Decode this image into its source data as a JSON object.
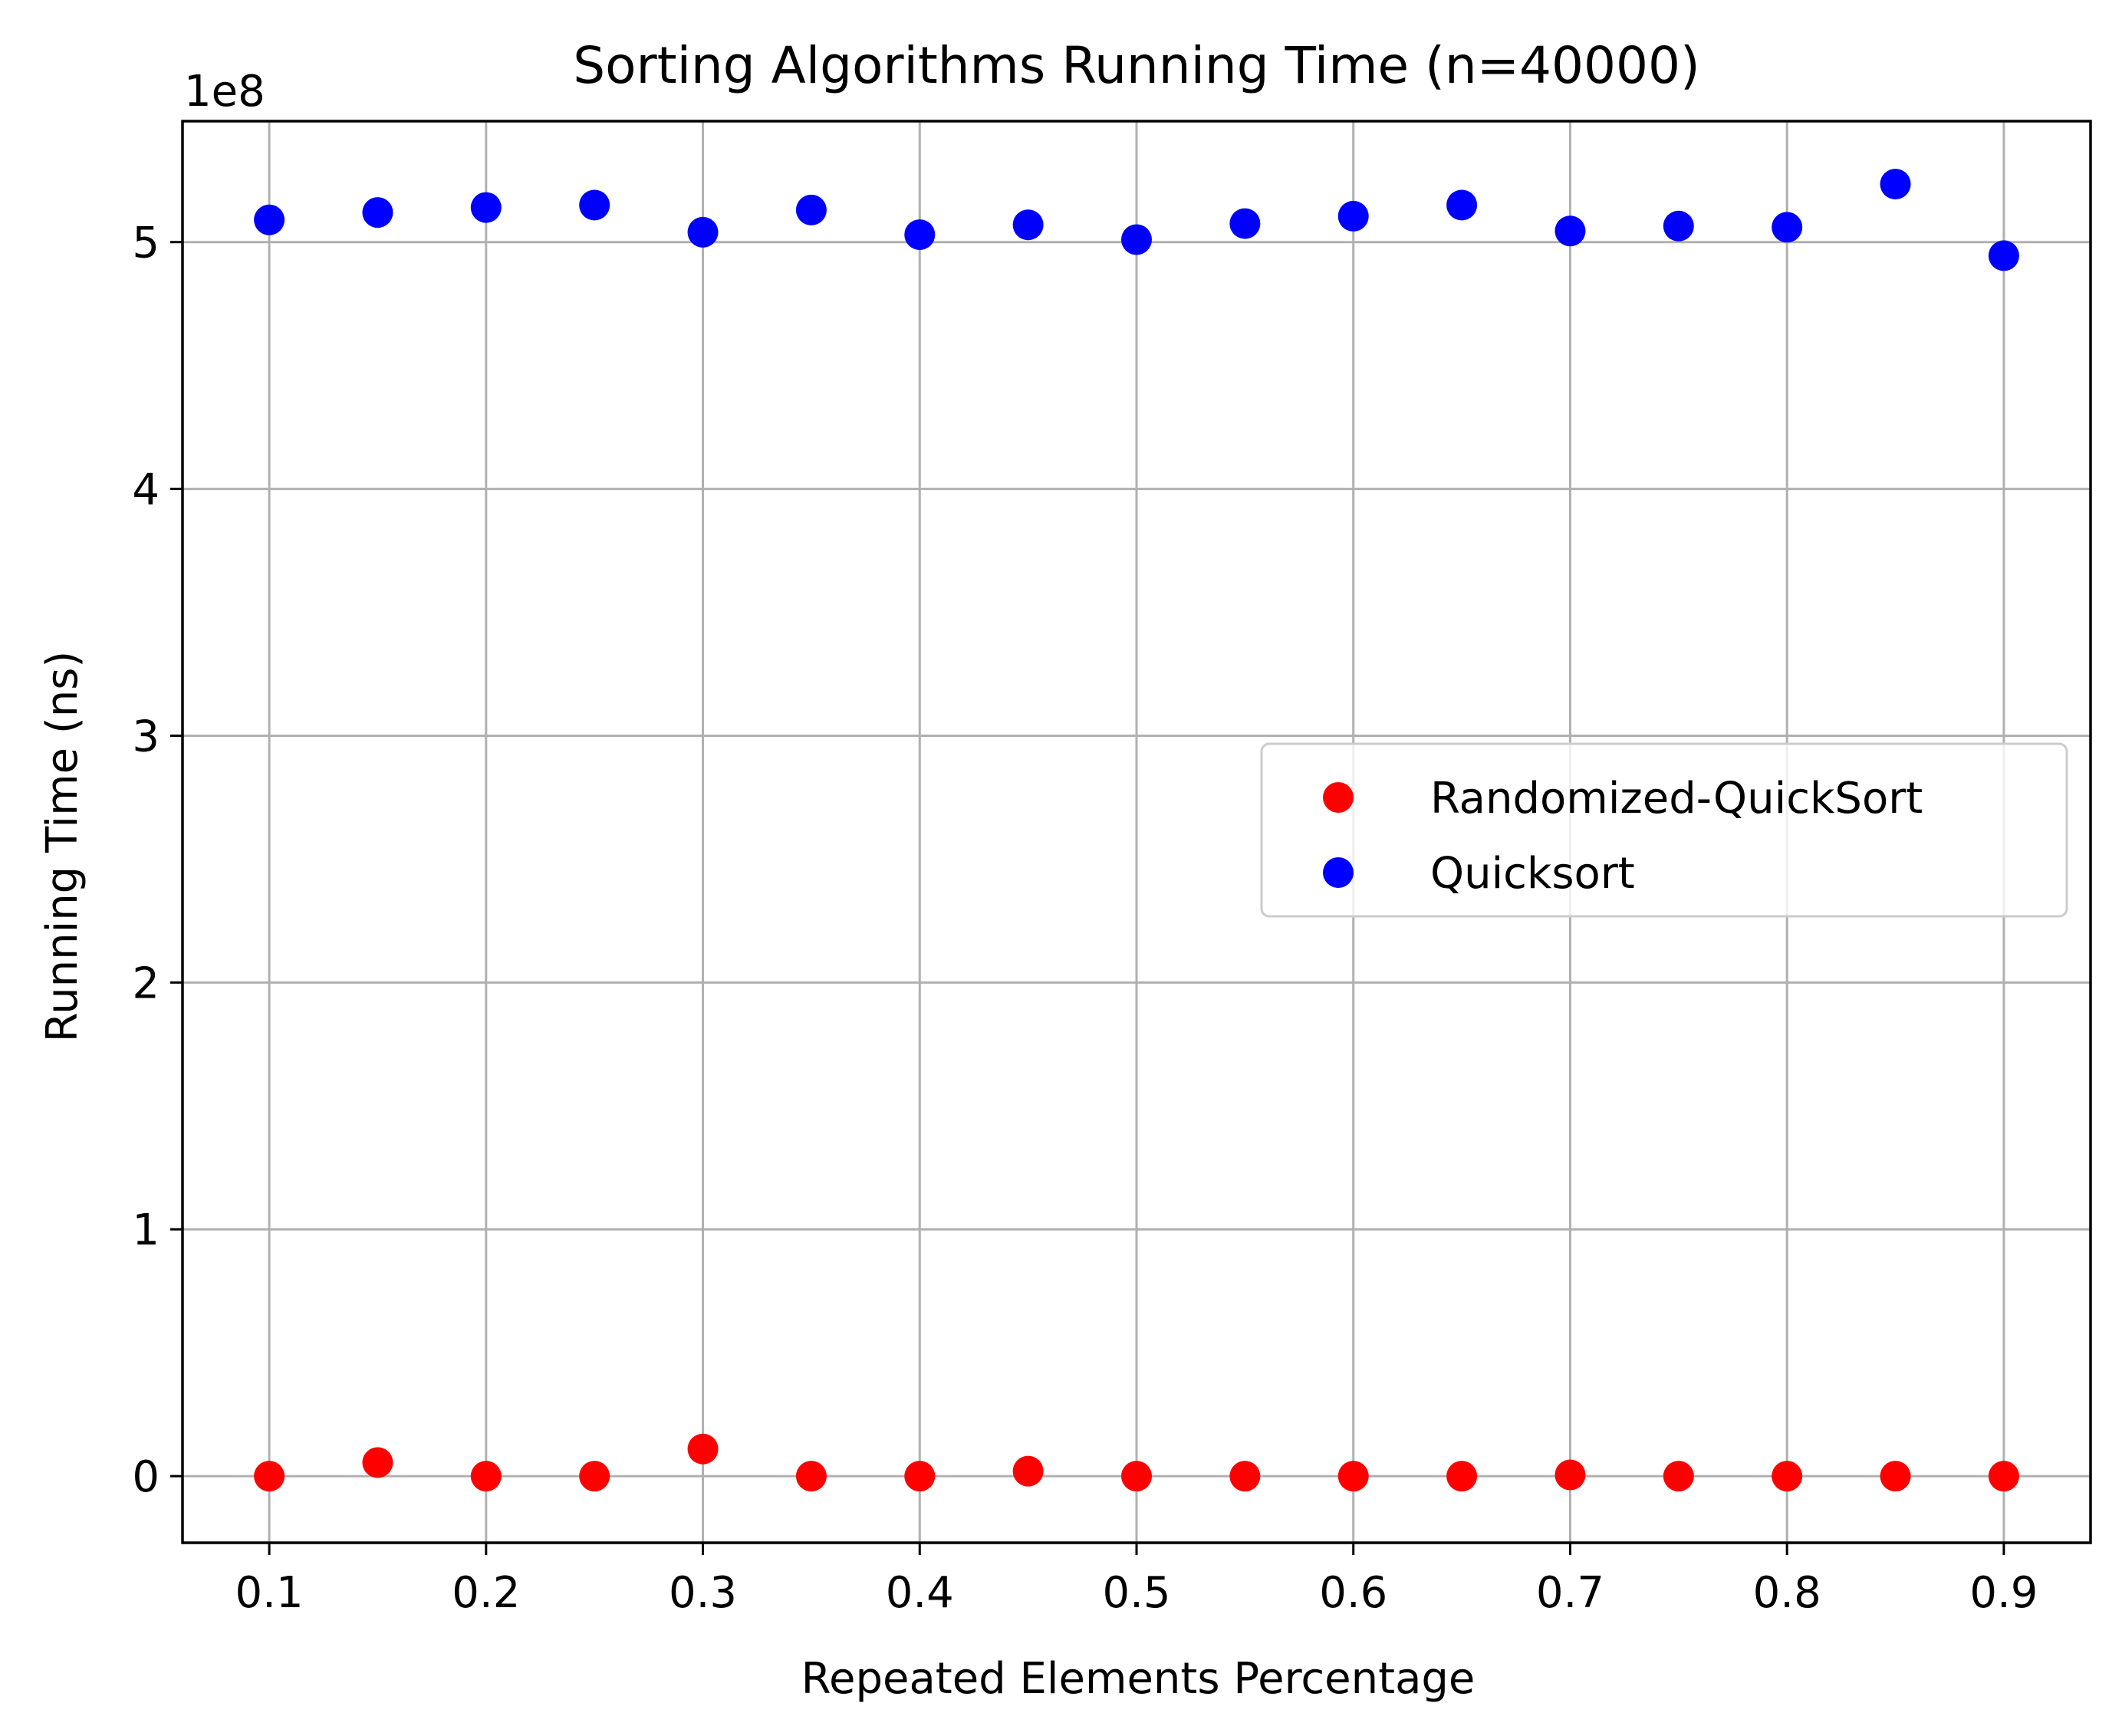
{
  "chart_data": {
    "type": "scatter",
    "title": "Sorting Algorithms Running Time (n=40000)",
    "xlabel": "Repeated Elements Percentage",
    "ylabel": "Running Time (ns)",
    "y_offset_label": "1e8",
    "y_scale_factor": 100000000,
    "xlim": [
      0.06,
      0.94
    ],
    "ylim": [
      -27000000,
      549000000
    ],
    "x_ticks": [
      0.1,
      0.2,
      0.3,
      0.4,
      0.5,
      0.6,
      0.7,
      0.8,
      0.9
    ],
    "x_tick_labels": [
      "0.1",
      "0.2",
      "0.3",
      "0.4",
      "0.5",
      "0.6",
      "0.7",
      "0.8",
      "0.9"
    ],
    "y_ticks": [
      0,
      100000000,
      200000000,
      300000000,
      400000000,
      500000000
    ],
    "y_tick_labels": [
      "0",
      "1",
      "2",
      "3",
      "4",
      "5"
    ],
    "grid": true,
    "legend_position": "center-right",
    "x": [
      0.1,
      0.15,
      0.2,
      0.25,
      0.3,
      0.35,
      0.4,
      0.45,
      0.5,
      0.55,
      0.6,
      0.65,
      0.7,
      0.75,
      0.8,
      0.85,
      0.9
    ],
    "series": [
      {
        "name": "Randomized-QuickSort",
        "color": "#ff0000",
        "values": [
          0,
          5500000,
          0,
          0,
          11000000,
          0,
          0,
          2000000,
          0,
          0,
          0,
          0,
          500000,
          0,
          0,
          0,
          0
        ]
      },
      {
        "name": "Quicksort",
        "color": "#0000ff",
        "values": [
          509000000,
          512000000,
          514000000,
          515000000,
          504000000,
          513000000,
          503000000,
          507000000,
          501000000,
          507500000,
          510500000,
          515000000,
          504500000,
          506500000,
          506000000,
          523500000,
          494500000
        ]
      }
    ]
  }
}
